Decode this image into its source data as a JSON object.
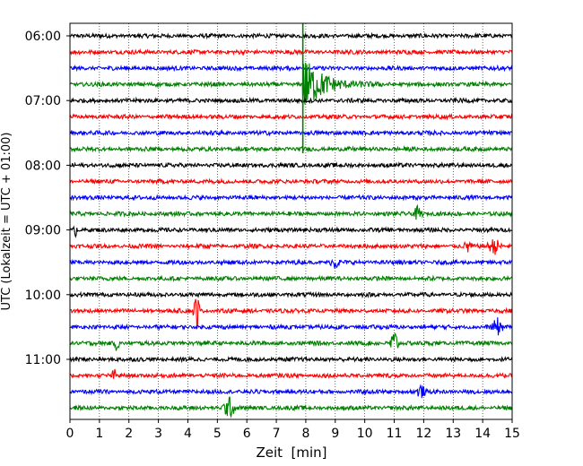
{
  "chart_data": {
    "type": "line",
    "title": "",
    "xlabel": "Zeit  [min]",
    "ylabel": "UTC (Lokalzeit = UTC + 01:00)",
    "xlim": [
      0,
      15
    ],
    "x_ticks": [
      "0",
      "1",
      "2",
      "3",
      "4",
      "5",
      "6",
      "7",
      "8",
      "9",
      "10",
      "11",
      "12",
      "13",
      "14",
      "15"
    ],
    "y_ticks": [
      "06:00",
      "07:00",
      "08:00",
      "09:00",
      "10:00",
      "11:00"
    ],
    "trace_interval_minutes": 15,
    "first_trace": "06:00",
    "grid": "vertical dotted at each minute",
    "series_colors": [
      "#000000",
      "#ff0000",
      "#0000ff",
      "#008000"
    ],
    "traces": [
      {
        "start": "06:00",
        "color": "#000000"
      },
      {
        "start": "06:15",
        "color": "#ff0000"
      },
      {
        "start": "06:30",
        "color": "#0000ff"
      },
      {
        "start": "06:45",
        "color": "#008000"
      },
      {
        "start": "07:00",
        "color": "#000000"
      },
      {
        "start": "07:15",
        "color": "#ff0000"
      },
      {
        "start": "07:30",
        "color": "#0000ff"
      },
      {
        "start": "07:45",
        "color": "#008000"
      },
      {
        "start": "08:00",
        "color": "#000000"
      },
      {
        "start": "08:15",
        "color": "#ff0000"
      },
      {
        "start": "08:30",
        "color": "#0000ff"
      },
      {
        "start": "08:45",
        "color": "#008000"
      },
      {
        "start": "09:00",
        "color": "#000000"
      },
      {
        "start": "09:15",
        "color": "#ff0000"
      },
      {
        "start": "09:30",
        "color": "#0000ff"
      },
      {
        "start": "09:45",
        "color": "#008000"
      },
      {
        "start": "10:00",
        "color": "#000000"
      },
      {
        "start": "10:15",
        "color": "#ff0000"
      },
      {
        "start": "10:30",
        "color": "#0000ff"
      },
      {
        "start": "10:45",
        "color": "#008000"
      },
      {
        "start": "11:00",
        "color": "#000000"
      },
      {
        "start": "11:15",
        "color": "#ff0000"
      },
      {
        "start": "11:30",
        "color": "#0000ff"
      },
      {
        "start": "11:45",
        "color": "#008000"
      }
    ],
    "events": [
      {
        "trace": "06:45",
        "time_min": 7.9,
        "amplitude": 3.2,
        "duration_min": 3.5,
        "kind": "earthquake"
      },
      {
        "trace": "08:45",
        "time_min": 11.8,
        "amplitude": 0.35,
        "duration_min": 0.4,
        "kind": "burst"
      },
      {
        "trace": "09:00",
        "time_min": 0.2,
        "amplitude": 0.3,
        "duration_min": 0.2,
        "kind": "spike"
      },
      {
        "trace": "09:15",
        "time_min": 13.5,
        "amplitude": 0.35,
        "duration_min": 0.3,
        "kind": "burst"
      },
      {
        "trace": "09:15",
        "time_min": 14.4,
        "amplitude": 0.4,
        "duration_min": 0.6,
        "kind": "burst"
      },
      {
        "trace": "09:30",
        "time_min": 9.0,
        "amplitude": 0.3,
        "duration_min": 0.4,
        "kind": "burst"
      },
      {
        "trace": "10:15",
        "time_min": 4.3,
        "amplitude": 0.9,
        "duration_min": 0.3,
        "kind": "spike"
      },
      {
        "trace": "10:30",
        "time_min": 14.5,
        "amplitude": 0.4,
        "duration_min": 0.5,
        "kind": "burst"
      },
      {
        "trace": "10:45",
        "time_min": 1.6,
        "amplitude": 0.55,
        "duration_min": 0.2,
        "kind": "spike"
      },
      {
        "trace": "10:45",
        "time_min": 11.0,
        "amplitude": 0.7,
        "duration_min": 0.4,
        "kind": "spike"
      },
      {
        "trace": "11:15",
        "time_min": 1.5,
        "amplitude": 0.3,
        "duration_min": 0.2,
        "kind": "spike"
      },
      {
        "trace": "11:30",
        "time_min": 11.9,
        "amplitude": 0.3,
        "duration_min": 0.4,
        "kind": "burst"
      },
      {
        "trace": "11:45",
        "time_min": 5.4,
        "amplitude": 0.5,
        "duration_min": 0.6,
        "kind": "burst"
      }
    ]
  }
}
